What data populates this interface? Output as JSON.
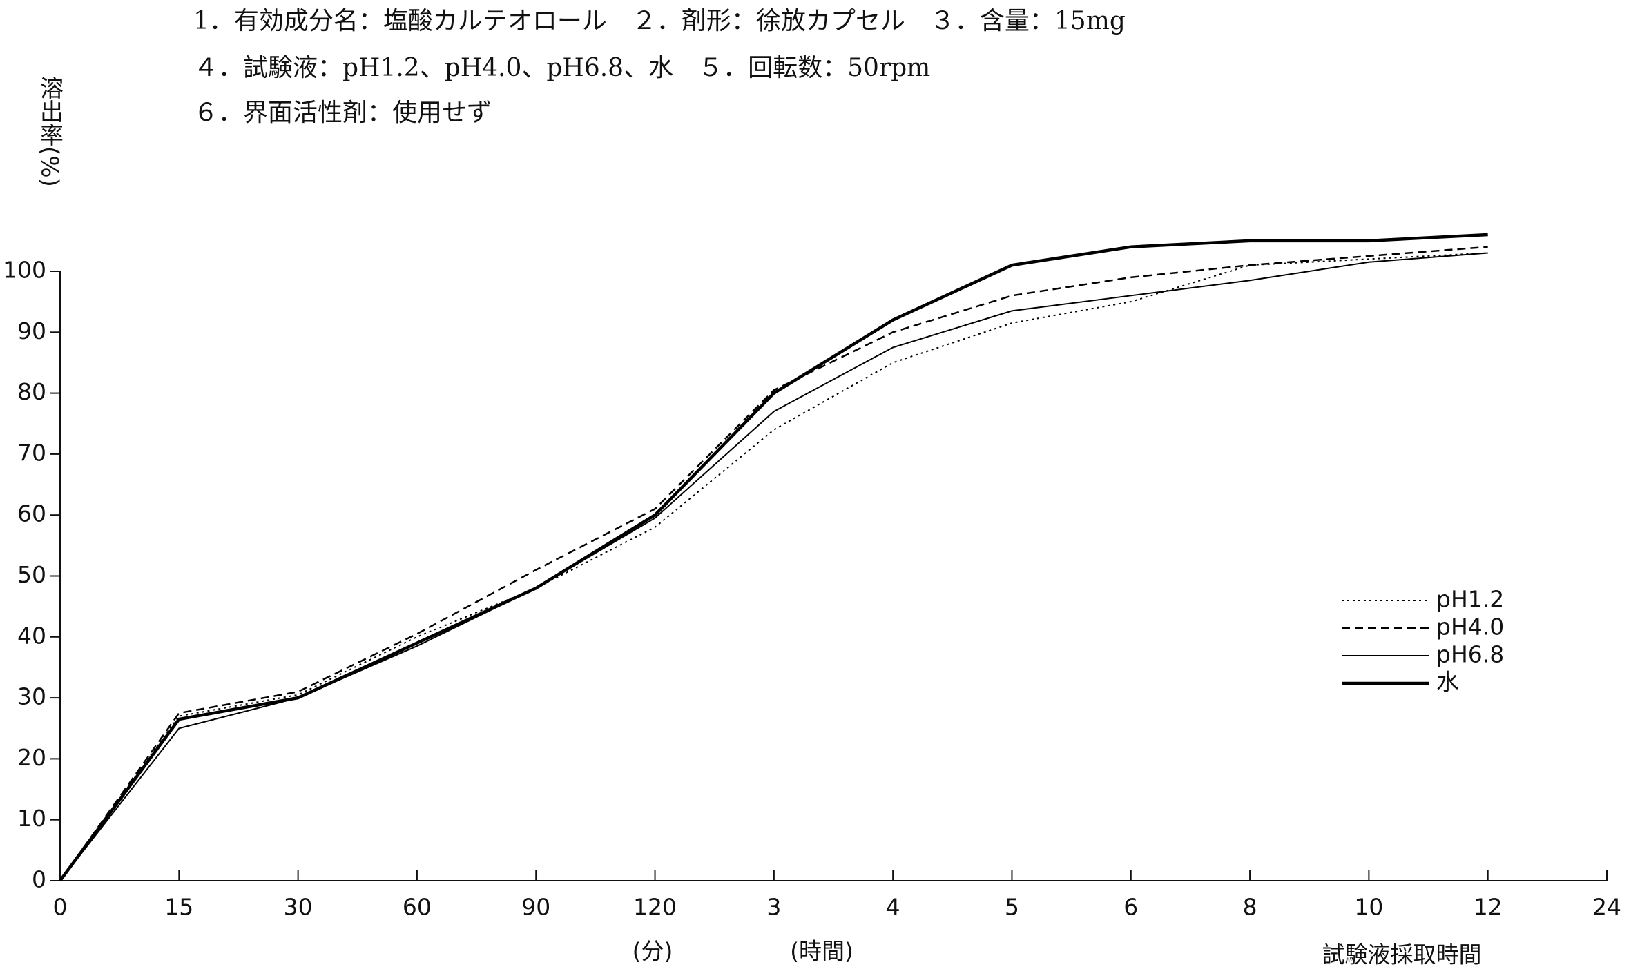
{
  "chart_data": {
    "type": "line",
    "header": [
      "1．有効成分名：塩酸カルテオロール　２．剤形：徐放カプセル　３．含量：15mg",
      "４．試験液：pH1.2、pH4.0、pH6.8、水　５．回転数：50rpm",
      "６．界面活性剤：使用せず"
    ],
    "ylabel": "溶出率(%)",
    "xlabel": "試験液採取時間",
    "unit_labels": [
      "(分)",
      "(時間)"
    ],
    "categories": [
      "0",
      "15",
      "30",
      "60",
      "90",
      "120",
      "3",
      "4",
      "5",
      "6",
      "8",
      "10",
      "12",
      "24"
    ],
    "series": [
      {
        "name": "pH1.2",
        "color": "#000",
        "dash": "dotted",
        "values": [
          0,
          27,
          30.5,
          40,
          48,
          58,
          74,
          85,
          91.5,
          95,
          101,
          102,
          103,
          null
        ]
      },
      {
        "name": "pH4.0",
        "color": "#000",
        "dash": "dashed",
        "values": [
          0,
          27.5,
          31,
          40.5,
          51,
          61,
          80.5,
          90,
          96,
          99,
          101,
          102.5,
          104,
          null
        ]
      },
      {
        "name": "pH6.8",
        "color": "#000",
        "dash": "thin",
        "values": [
          0,
          25,
          30,
          38.5,
          48,
          59.5,
          77,
          87.5,
          93.5,
          96,
          98.5,
          101.5,
          103,
          null
        ]
      },
      {
        "name": "水",
        "color": "#000",
        "dash": "thick",
        "values": [
          0,
          26.5,
          30,
          39,
          48,
          60,
          80,
          92,
          101,
          104,
          105,
          105,
          106,
          null
        ]
      }
    ],
    "ylim": [
      0,
      100
    ],
    "yticks": [
      0,
      10,
      20,
      30,
      40,
      50,
      60,
      70,
      80,
      90,
      100
    ],
    "legend": "right"
  }
}
